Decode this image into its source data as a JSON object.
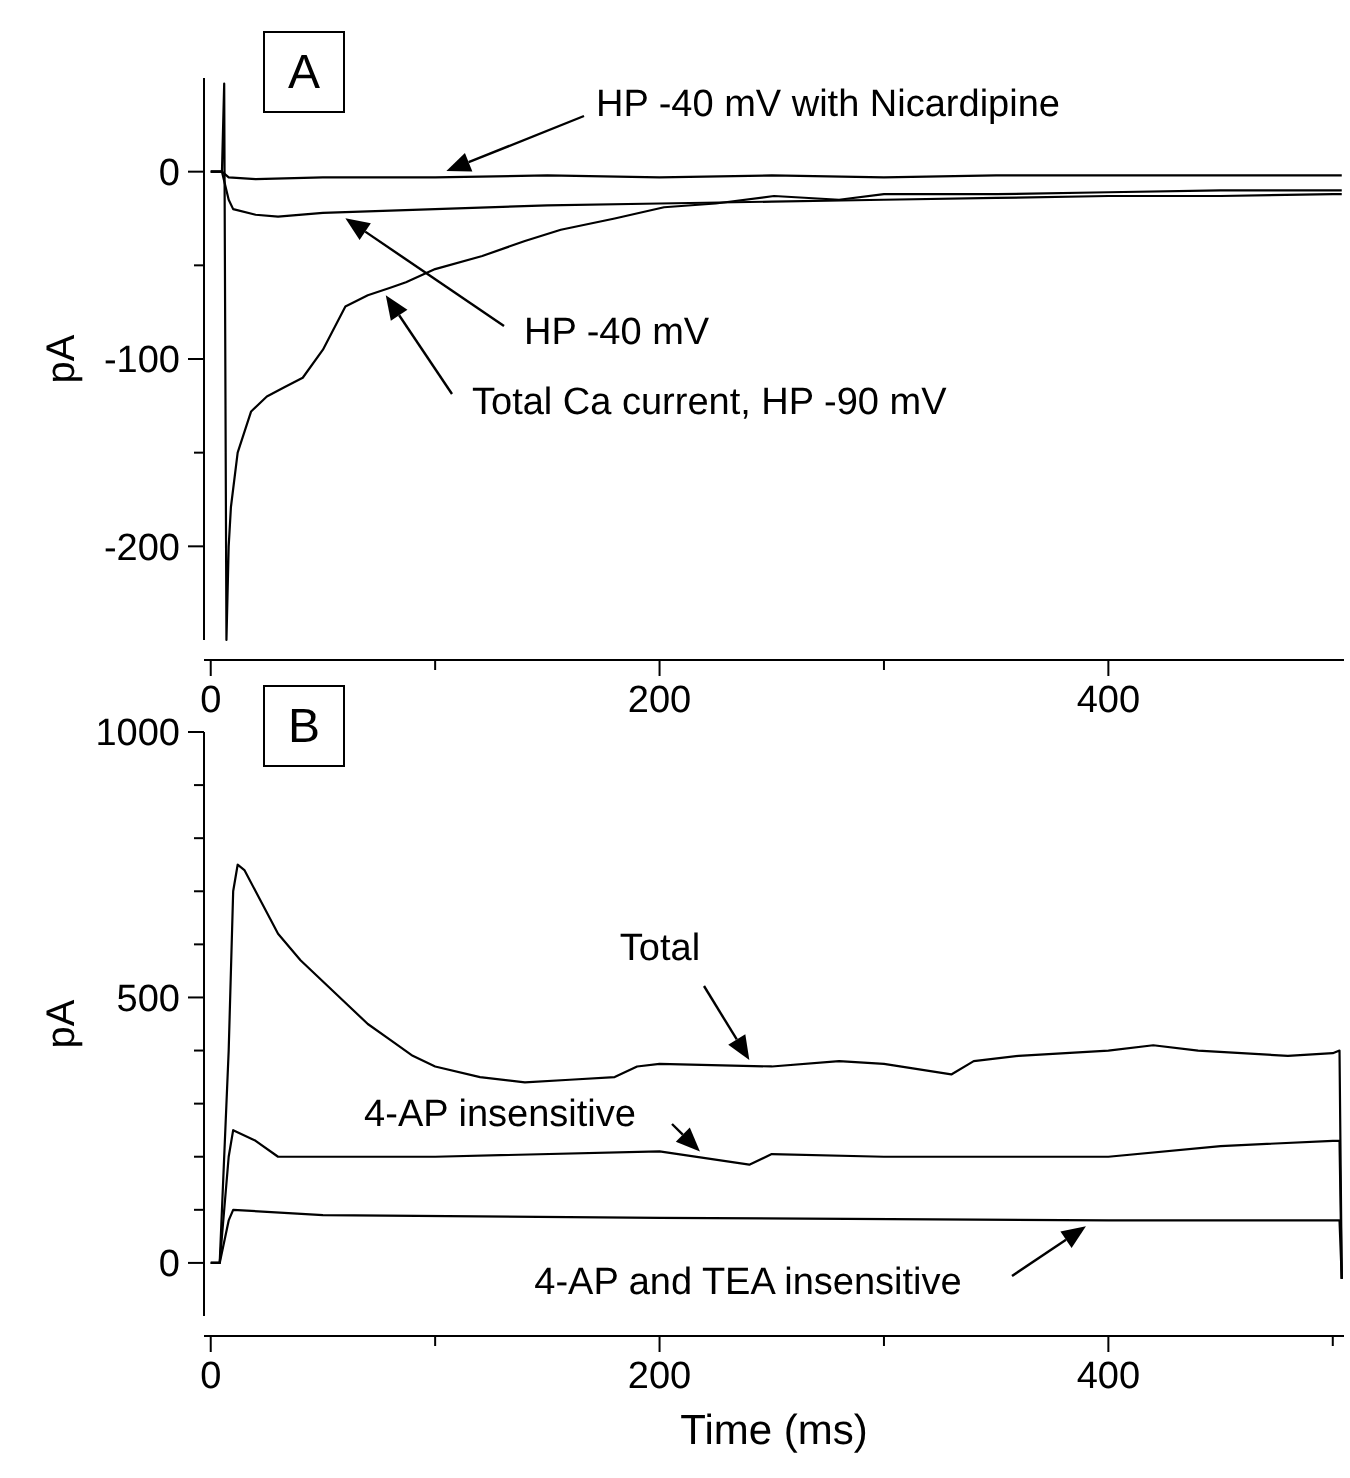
{
  "chart_data": [
    {
      "type": "line",
      "title": "A",
      "ylabel": "pA",
      "annotations": [
        "HP -40 mV with Nicardipine",
        "HP -40 mV",
        "Total Ca current, HP -90 mV"
      ],
      "xlim": [
        -3,
        505
      ],
      "ylim": [
        -250,
        50
      ],
      "xticks": [
        0,
        {
          "value": 100,
          "label": null
        },
        200,
        {
          "value": 300,
          "label": null
        },
        400
      ],
      "yticks": [
        -200,
        {
          "value": -150,
          "label": null
        },
        -100,
        {
          "value": -50,
          "label": null
        },
        0
      ],
      "grid": false,
      "series": [
        {
          "color": "#000000",
          "x": [
            0,
            5,
            8,
            20,
            50,
            100,
            150,
            200,
            250,
            300,
            350,
            400,
            450,
            500,
            504
          ],
          "values": [
            0,
            0,
            -3,
            -4,
            -3,
            -3,
            -2,
            -3,
            -2,
            -3,
            -2,
            -2,
            -2,
            -2,
            -2
          ]
        },
        {
          "color": "#000000",
          "x": [
            0,
            5,
            8,
            10,
            20,
            30,
            50,
            100,
            150,
            200,
            250,
            300,
            350,
            400,
            450,
            500,
            504
          ],
          "values": [
            0,
            0,
            -15,
            -20,
            -23,
            -24,
            -22,
            -20,
            -18,
            -17,
            -16,
            -15,
            -14,
            -13,
            -13,
            -12,
            -12
          ]
        },
        {
          "color": "#000000",
          "x": [
            0,
            5,
            6,
            7,
            8,
            9,
            12,
            18,
            25,
            33,
            41,
            50,
            60,
            70,
            80,
            87,
            100,
            121,
            140,
            156,
            180,
            202,
            225,
            251,
            280,
            300,
            350,
            400,
            450,
            500,
            504
          ],
          "values": [
            0,
            0,
            47,
            -250,
            -200,
            -179,
            -150,
            -128,
            -120,
            -115,
            -110,
            -95,
            -72,
            -66,
            -62,
            -59,
            -52,
            -45,
            -37,
            -31,
            -25,
            -19,
            -17,
            -13,
            -15,
            -12,
            -12,
            -11,
            -10,
            -10,
            -10
          ]
        }
      ]
    },
    {
      "type": "line",
      "title": "B",
      "xlabel": "Time (ms)",
      "ylabel": "pA",
      "annotations": [
        "Total",
        "4-AP insensitive",
        "4-AP and TEA insensitive"
      ],
      "xlim": [
        -3,
        505
      ],
      "ylim": [
        -100,
        1000
      ],
      "xticks": [
        0,
        {
          "value": 100,
          "label": null
        },
        200,
        {
          "value": 300,
          "label": null
        },
        400,
        {
          "value": 500,
          "label": null
        }
      ],
      "yticks": [
        0,
        {
          "value": 100,
          "label": null
        },
        {
          "value": 200,
          "label": null
        },
        {
          "value": 300,
          "label": null
        },
        {
          "value": 400,
          "label": null
        },
        500,
        {
          "value": 600,
          "label": null
        },
        {
          "value": 700,
          "label": null
        },
        {
          "value": 800,
          "label": null
        },
        {
          "value": 900,
          "label": null
        },
        1000
      ],
      "grid": false,
      "series": [
        {
          "color": "#000000",
          "x": [
            0,
            4,
            8,
            10,
            12,
            15,
            20,
            30,
            40,
            50,
            60,
            70,
            80,
            90,
            100,
            120,
            140,
            160,
            180,
            190,
            200,
            250,
            280,
            300,
            330,
            340,
            360,
            400,
            420,
            440,
            480,
            500,
            503,
            504
          ],
          "values": [
            0,
            0,
            400,
            700,
            750,
            740,
            700,
            620,
            570,
            530,
            490,
            450,
            420,
            390,
            370,
            350,
            340,
            345,
            350,
            370,
            375,
            370,
            380,
            375,
            355,
            380,
            390,
            400,
            410,
            400,
            390,
            395,
            400,
            -30
          ]
        },
        {
          "color": "#000000",
          "x": [
            0,
            4,
            8,
            10,
            20,
            30,
            100,
            200,
            240,
            250,
            300,
            400,
            450,
            500,
            503,
            504
          ],
          "values": [
            0,
            0,
            200,
            250,
            230,
            200,
            200,
            210,
            185,
            205,
            200,
            200,
            220,
            230,
            230,
            -30
          ]
        },
        {
          "color": "#000000",
          "x": [
            0,
            4,
            8,
            10,
            50,
            200,
            400,
            500,
            503,
            504
          ],
          "values": [
            0,
            0,
            80,
            100,
            90,
            85,
            80,
            80,
            80,
            -30
          ]
        }
      ]
    }
  ]
}
